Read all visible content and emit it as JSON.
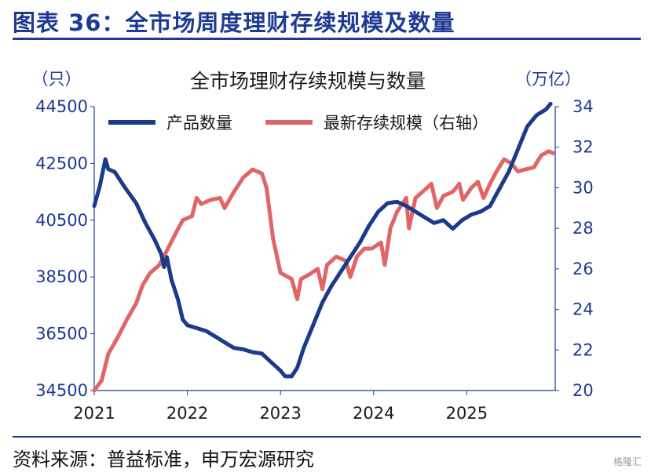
{
  "figure": {
    "title": "图表 36：全市场周度理财存续规模及数量",
    "source": "资料来源：普益标准，申万宏源研究",
    "watermark": "格隆汇"
  },
  "chart_data": {
    "type": "line",
    "title": "全市场理财存续规模与数量",
    "ylabel_left": "（只）",
    "ylabel_right": "（万亿）",
    "x_ticks": [
      "2021",
      "2022",
      "2023",
      "2024",
      "2025"
    ],
    "x_tick_values": [
      2021.0,
      2022.0,
      2023.0,
      2024.0,
      2025.0
    ],
    "xlim": [
      2021.0,
      2025.95
    ],
    "ylim_left": [
      34500,
      44500
    ],
    "yticks_left": [
      "44500",
      "42500",
      "40500",
      "38500",
      "36500",
      "34500"
    ],
    "ylim_right": [
      20,
      34
    ],
    "yticks_right": [
      "34",
      "32",
      "30",
      "28",
      "26",
      "24",
      "22",
      "20"
    ],
    "legend_position": "top",
    "grid": false,
    "series": [
      {
        "name": "产品数量",
        "axis": "left",
        "color": "#1b3a8c",
        "points": [
          [
            2021.0,
            41000
          ],
          [
            2021.06,
            41700
          ],
          [
            2021.12,
            42650
          ],
          [
            2021.15,
            42300
          ],
          [
            2021.22,
            42200
          ],
          [
            2021.32,
            41700
          ],
          [
            2021.45,
            41100
          ],
          [
            2021.55,
            40400
          ],
          [
            2021.65,
            39800
          ],
          [
            2021.72,
            39300
          ],
          [
            2021.75,
            38850
          ],
          [
            2021.78,
            39200
          ],
          [
            2021.83,
            38400
          ],
          [
            2021.9,
            37700
          ],
          [
            2021.95,
            37000
          ],
          [
            2022.0,
            36800
          ],
          [
            2022.1,
            36700
          ],
          [
            2022.2,
            36600
          ],
          [
            2022.3,
            36400
          ],
          [
            2022.4,
            36200
          ],
          [
            2022.5,
            36000
          ],
          [
            2022.6,
            35950
          ],
          [
            2022.7,
            35850
          ],
          [
            2022.8,
            35800
          ],
          [
            2022.9,
            35500
          ],
          [
            2023.0,
            35200
          ],
          [
            2023.05,
            35000
          ],
          [
            2023.12,
            35000
          ],
          [
            2023.18,
            35300
          ],
          [
            2023.25,
            36000
          ],
          [
            2023.35,
            36800
          ],
          [
            2023.45,
            37600
          ],
          [
            2023.55,
            38200
          ],
          [
            2023.65,
            38700
          ],
          [
            2023.75,
            39200
          ],
          [
            2023.85,
            39700
          ],
          [
            2023.95,
            40300
          ],
          [
            2024.05,
            40800
          ],
          [
            2024.15,
            41100
          ],
          [
            2024.25,
            41150
          ],
          [
            2024.35,
            41000
          ],
          [
            2024.45,
            40800
          ],
          [
            2024.55,
            40600
          ],
          [
            2024.65,
            40400
          ],
          [
            2024.75,
            40500
          ],
          [
            2024.85,
            40200
          ],
          [
            2024.95,
            40500
          ],
          [
            2025.05,
            40700
          ],
          [
            2025.15,
            40800
          ],
          [
            2025.25,
            41000
          ],
          [
            2025.35,
            41600
          ],
          [
            2025.45,
            42200
          ],
          [
            2025.55,
            43000
          ],
          [
            2025.65,
            43800
          ],
          [
            2025.75,
            44200
          ],
          [
            2025.85,
            44400
          ],
          [
            2025.9,
            44600
          ]
        ]
      },
      {
        "name": "最新存续规模（右轴）",
        "axis": "right",
        "color": "#e06666",
        "points": [
          [
            2021.0,
            20.0
          ],
          [
            2021.08,
            20.5
          ],
          [
            2021.15,
            21.8
          ],
          [
            2021.25,
            22.6
          ],
          [
            2021.35,
            23.5
          ],
          [
            2021.45,
            24.3
          ],
          [
            2021.52,
            25.2
          ],
          [
            2021.6,
            25.8
          ],
          [
            2021.7,
            26.2
          ],
          [
            2021.78,
            26.9
          ],
          [
            2021.88,
            27.8
          ],
          [
            2021.95,
            28.4
          ],
          [
            2022.05,
            28.6
          ],
          [
            2022.1,
            29.5
          ],
          [
            2022.15,
            29.2
          ],
          [
            2022.25,
            29.4
          ],
          [
            2022.35,
            29.5
          ],
          [
            2022.4,
            29.0
          ],
          [
            2022.5,
            29.8
          ],
          [
            2022.6,
            30.5
          ],
          [
            2022.7,
            30.9
          ],
          [
            2022.8,
            30.7
          ],
          [
            2022.85,
            30.0
          ],
          [
            2022.92,
            27.5
          ],
          [
            2023.0,
            25.8
          ],
          [
            2023.08,
            25.6
          ],
          [
            2023.12,
            25.5
          ],
          [
            2023.18,
            24.5
          ],
          [
            2023.22,
            25.5
          ],
          [
            2023.3,
            25.7
          ],
          [
            2023.4,
            26.0
          ],
          [
            2023.45,
            25.0
          ],
          [
            2023.5,
            26.2
          ],
          [
            2023.6,
            26.6
          ],
          [
            2023.7,
            26.4
          ],
          [
            2023.75,
            25.6
          ],
          [
            2023.82,
            26.6
          ],
          [
            2023.9,
            27.0
          ],
          [
            2023.98,
            27.0
          ],
          [
            2024.08,
            27.3
          ],
          [
            2024.12,
            26.2
          ],
          [
            2024.18,
            28.0
          ],
          [
            2024.25,
            28.8
          ],
          [
            2024.35,
            29.5
          ],
          [
            2024.38,
            28.0
          ],
          [
            2024.45,
            29.5
          ],
          [
            2024.55,
            29.9
          ],
          [
            2024.62,
            30.2
          ],
          [
            2024.68,
            29.0
          ],
          [
            2024.75,
            29.6
          ],
          [
            2024.85,
            29.8
          ],
          [
            2024.92,
            30.2
          ],
          [
            2024.96,
            29.4
          ],
          [
            2025.05,
            30.0
          ],
          [
            2025.12,
            30.3
          ],
          [
            2025.18,
            29.5
          ],
          [
            2025.25,
            30.2
          ],
          [
            2025.32,
            30.8
          ],
          [
            2025.4,
            31.4
          ],
          [
            2025.48,
            31.2
          ],
          [
            2025.55,
            30.8
          ],
          [
            2025.62,
            30.9
          ],
          [
            2025.72,
            31.0
          ],
          [
            2025.8,
            31.6
          ],
          [
            2025.88,
            31.8
          ],
          [
            2025.93,
            31.7
          ]
        ]
      }
    ]
  }
}
